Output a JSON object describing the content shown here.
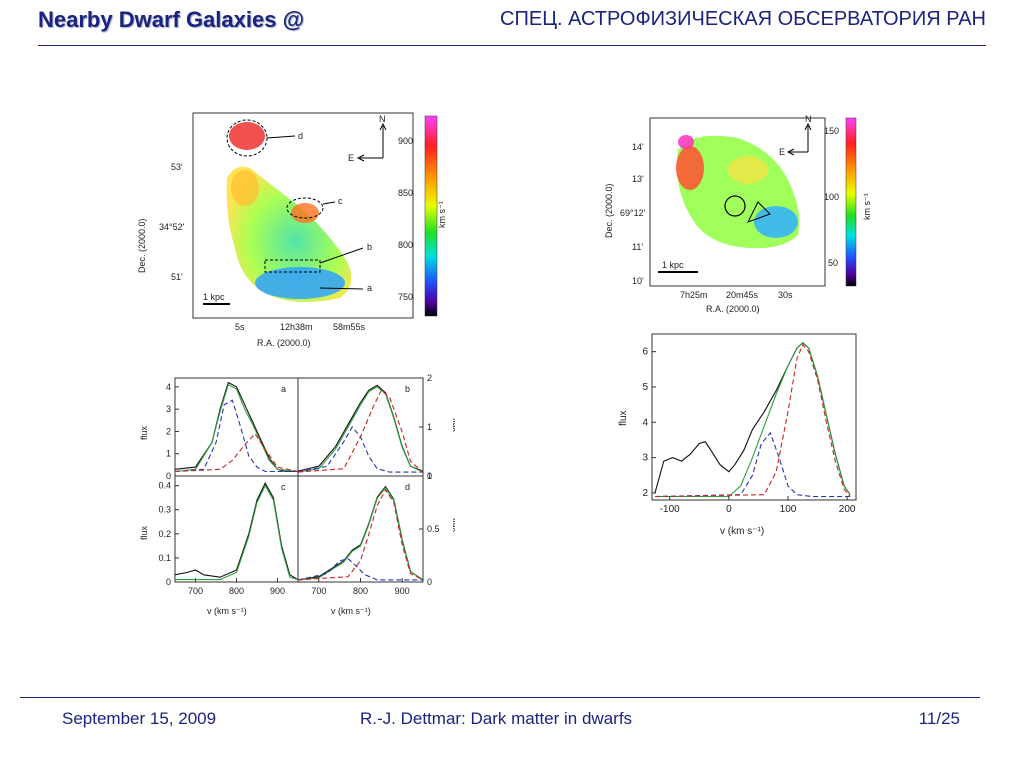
{
  "header": {
    "title_left": "Nearby Dwarf Galaxies @",
    "title_right": "СПЕЦ. АСТРОФИЗИЧЕСКАЯ ОБСЕРВАТОРИЯ РАН"
  },
  "footer": {
    "date": "September 15, 2009",
    "author_title": "R.-J. Dettmar: Dark matter in dwarfs",
    "page": "11/25"
  },
  "left_map": {
    "ylabel": "Dec. (2000.0)",
    "xlabel": "R.A. (2000.0)",
    "yticks": [
      "53'",
      "34°52'",
      "51'"
    ],
    "xticks": [
      "5s",
      "12h38m",
      "58m55s"
    ],
    "region_labels": [
      "d",
      "c",
      "b",
      "a"
    ],
    "compass": {
      "north": "N",
      "east": "E"
    },
    "scalebar": "1 kpc",
    "colorbar_ticks": [
      "900",
      "850",
      "800",
      "750"
    ],
    "colorbar_label": "km s⁻¹"
  },
  "right_map": {
    "ylabel": "Dec. (2000.0)",
    "xlabel": "R.A. (2000.0)",
    "yticks": [
      "14'",
      "13'",
      "69°12'",
      "11'",
      "10'"
    ],
    "xticks": [
      "7h25m",
      "20m45s",
      "30s"
    ],
    "compass": {
      "north": "N",
      "east": "E"
    },
    "scalebar": "1 kpc",
    "colorbar_ticks": [
      "150",
      "100",
      "50"
    ],
    "colorbar_label": "km s⁻¹"
  },
  "chart_data": [
    {
      "type": "line",
      "panel": "a",
      "ylabel": "flux",
      "ylim": [
        0,
        4.4
      ],
      "yticks": [
        "0",
        "1",
        "2",
        "3",
        "4"
      ],
      "xlim": [
        650,
        950
      ],
      "series": [
        {
          "x": [
            650,
            700,
            740,
            760,
            780,
            800,
            820,
            840,
            860,
            880,
            900,
            920,
            950
          ],
          "y": [
            0.3,
            0.4,
            1.5,
            3.0,
            4.2,
            4.0,
            3.2,
            2.4,
            1.6,
            0.8,
            0.3,
            0.2,
            0.2
          ]
        },
        {
          "x": [
            650,
            700,
            740,
            760,
            780,
            800,
            820,
            840,
            860,
            880,
            900,
            950
          ],
          "y": [
            0.2,
            0.3,
            1.5,
            2.9,
            4.1,
            3.9,
            3.0,
            2.3,
            1.5,
            0.7,
            0.3,
            0.2
          ]
        },
        {
          "x": [
            650,
            720,
            750,
            770,
            790,
            810,
            830,
            850,
            870,
            950
          ],
          "y": [
            0.2,
            0.3,
            1.5,
            3.2,
            3.4,
            2.2,
            0.9,
            0.4,
            0.2,
            0.2
          ]
        },
        {
          "x": [
            650,
            760,
            790,
            820,
            845,
            870,
            900,
            950
          ],
          "y": [
            0.2,
            0.3,
            0.7,
            1.4,
            1.9,
            1.2,
            0.4,
            0.2
          ]
        }
      ]
    },
    {
      "type": "line",
      "panel": "b",
      "ylabel": "flux",
      "ylim": [
        0,
        2
      ],
      "yticks": [
        "0",
        "1",
        "2"
      ],
      "xlim": [
        650,
        950
      ],
      "series": [
        {
          "x": [
            650,
            700,
            740,
            780,
            800,
            820,
            840,
            860,
            880,
            900,
            920,
            950
          ],
          "y": [
            0.1,
            0.2,
            0.6,
            1.2,
            1.5,
            1.75,
            1.85,
            1.7,
            1.2,
            0.6,
            0.2,
            0.1
          ]
        },
        {
          "x": [
            650,
            700,
            740,
            780,
            800,
            820,
            840,
            860,
            880,
            900,
            920,
            950
          ],
          "y": [
            0.08,
            0.15,
            0.55,
            1.15,
            1.45,
            1.72,
            1.82,
            1.68,
            1.18,
            0.58,
            0.2,
            0.08
          ]
        },
        {
          "x": [
            650,
            720,
            760,
            780,
            800,
            820,
            840,
            870,
            950
          ],
          "y": [
            0.08,
            0.2,
            0.7,
            1.0,
            0.8,
            0.4,
            0.15,
            0.08,
            0.08
          ]
        },
        {
          "x": [
            650,
            760,
            800,
            830,
            850,
            870,
            900,
            920,
            950
          ],
          "y": [
            0.08,
            0.15,
            0.8,
            1.4,
            1.75,
            1.6,
            0.9,
            0.3,
            0.08
          ]
        }
      ]
    },
    {
      "type": "line",
      "panel": "c",
      "ylabel": "flux",
      "xlabel": "v (km s⁻¹)",
      "ylim": [
        0,
        0.44
      ],
      "yticks": [
        "0",
        "0.1",
        "0.2",
        "0.3",
        "0.4"
      ],
      "xlim": [
        650,
        950
      ],
      "xticks": [
        "700",
        "800",
        "900"
      ],
      "series": [
        {
          "x": [
            650,
            680,
            700,
            720,
            760,
            800,
            830,
            850,
            870,
            890,
            910,
            930,
            950
          ],
          "y": [
            0.03,
            0.04,
            0.05,
            0.03,
            0.02,
            0.05,
            0.2,
            0.34,
            0.41,
            0.35,
            0.15,
            0.03,
            0.01
          ]
        },
        {
          "x": [
            650,
            760,
            800,
            830,
            850,
            870,
            890,
            910,
            930,
            950
          ],
          "y": [
            0.01,
            0.01,
            0.04,
            0.19,
            0.33,
            0.4,
            0.34,
            0.14,
            0.02,
            0.01
          ]
        }
      ]
    },
    {
      "type": "line",
      "panel": "d",
      "ylabel": "flux",
      "xlabel": "v (km s⁻¹)",
      "ylim": [
        0,
        1
      ],
      "yticks": [
        "0",
        "0.5",
        "1"
      ],
      "xlim": [
        650,
        950
      ],
      "xticks": [
        "700",
        "800",
        "900"
      ],
      "series": [
        {
          "x": [
            650,
            700,
            740,
            760,
            780,
            800,
            820,
            840,
            860,
            880,
            900,
            920,
            950
          ],
          "y": [
            0.02,
            0.05,
            0.15,
            0.2,
            0.3,
            0.35,
            0.55,
            0.8,
            0.9,
            0.78,
            0.4,
            0.1,
            0.02
          ]
        },
        {
          "x": [
            650,
            700,
            740,
            760,
            780,
            800,
            820,
            840,
            860,
            880,
            900,
            920,
            950
          ],
          "y": [
            0.02,
            0.04,
            0.14,
            0.19,
            0.29,
            0.34,
            0.54,
            0.79,
            0.89,
            0.77,
            0.39,
            0.1,
            0.02
          ]
        },
        {
          "x": [
            650,
            720,
            750,
            770,
            790,
            810,
            840,
            950
          ],
          "y": [
            0.02,
            0.08,
            0.2,
            0.22,
            0.15,
            0.07,
            0.02,
            0.02
          ]
        },
        {
          "x": [
            650,
            770,
            800,
            820,
            840,
            860,
            880,
            900,
            920,
            950
          ],
          "y": [
            0.02,
            0.05,
            0.2,
            0.45,
            0.72,
            0.87,
            0.75,
            0.35,
            0.08,
            0.02
          ]
        }
      ]
    },
    {
      "type": "line",
      "panel": "right",
      "ylabel": "flux",
      "xlabel": "v (km s⁻¹)",
      "xlim": [
        -130,
        215
      ],
      "ylim": [
        1.8,
        6.5
      ],
      "xticks": [
        "-100",
        "0",
        "100",
        "200"
      ],
      "yticks": [
        "2",
        "3",
        "4",
        "5",
        "6"
      ],
      "series": [
        {
          "x": [
            -125,
            -110,
            -95,
            -80,
            -65,
            -50,
            -40,
            -30,
            -15,
            0,
            10,
            25,
            40,
            60,
            80,
            100,
            115,
            125,
            135,
            150,
            165,
            180,
            195,
            205
          ],
          "y": [
            2.0,
            2.9,
            3.0,
            2.9,
            3.1,
            3.4,
            3.45,
            3.2,
            2.8,
            2.6,
            2.8,
            3.2,
            3.8,
            4.3,
            4.9,
            5.6,
            6.1,
            6.25,
            6.1,
            5.3,
            4.2,
            3.1,
            2.2,
            1.95
          ]
        },
        {
          "x": [
            -125,
            0,
            20,
            40,
            60,
            80,
            100,
            115,
            125,
            135,
            150,
            165,
            180,
            195,
            205
          ],
          "y": [
            1.9,
            1.9,
            2.2,
            3.0,
            3.9,
            4.8,
            5.6,
            6.1,
            6.25,
            6.1,
            5.3,
            4.2,
            3.1,
            2.2,
            1.95
          ]
        },
        {
          "x": [
            -125,
            20,
            40,
            55,
            70,
            85,
            100,
            115,
            140,
            205
          ],
          "y": [
            1.9,
            1.95,
            2.5,
            3.4,
            3.7,
            3.0,
            2.2,
            1.95,
            1.9,
            1.9
          ]
        },
        {
          "x": [
            -125,
            60,
            80,
            100,
            115,
            125,
            135,
            150,
            165,
            180,
            195,
            205
          ],
          "y": [
            1.9,
            1.95,
            2.6,
            4.3,
            5.8,
            6.2,
            6.0,
            5.2,
            4.0,
            2.9,
            2.1,
            1.9
          ]
        }
      ]
    }
  ]
}
